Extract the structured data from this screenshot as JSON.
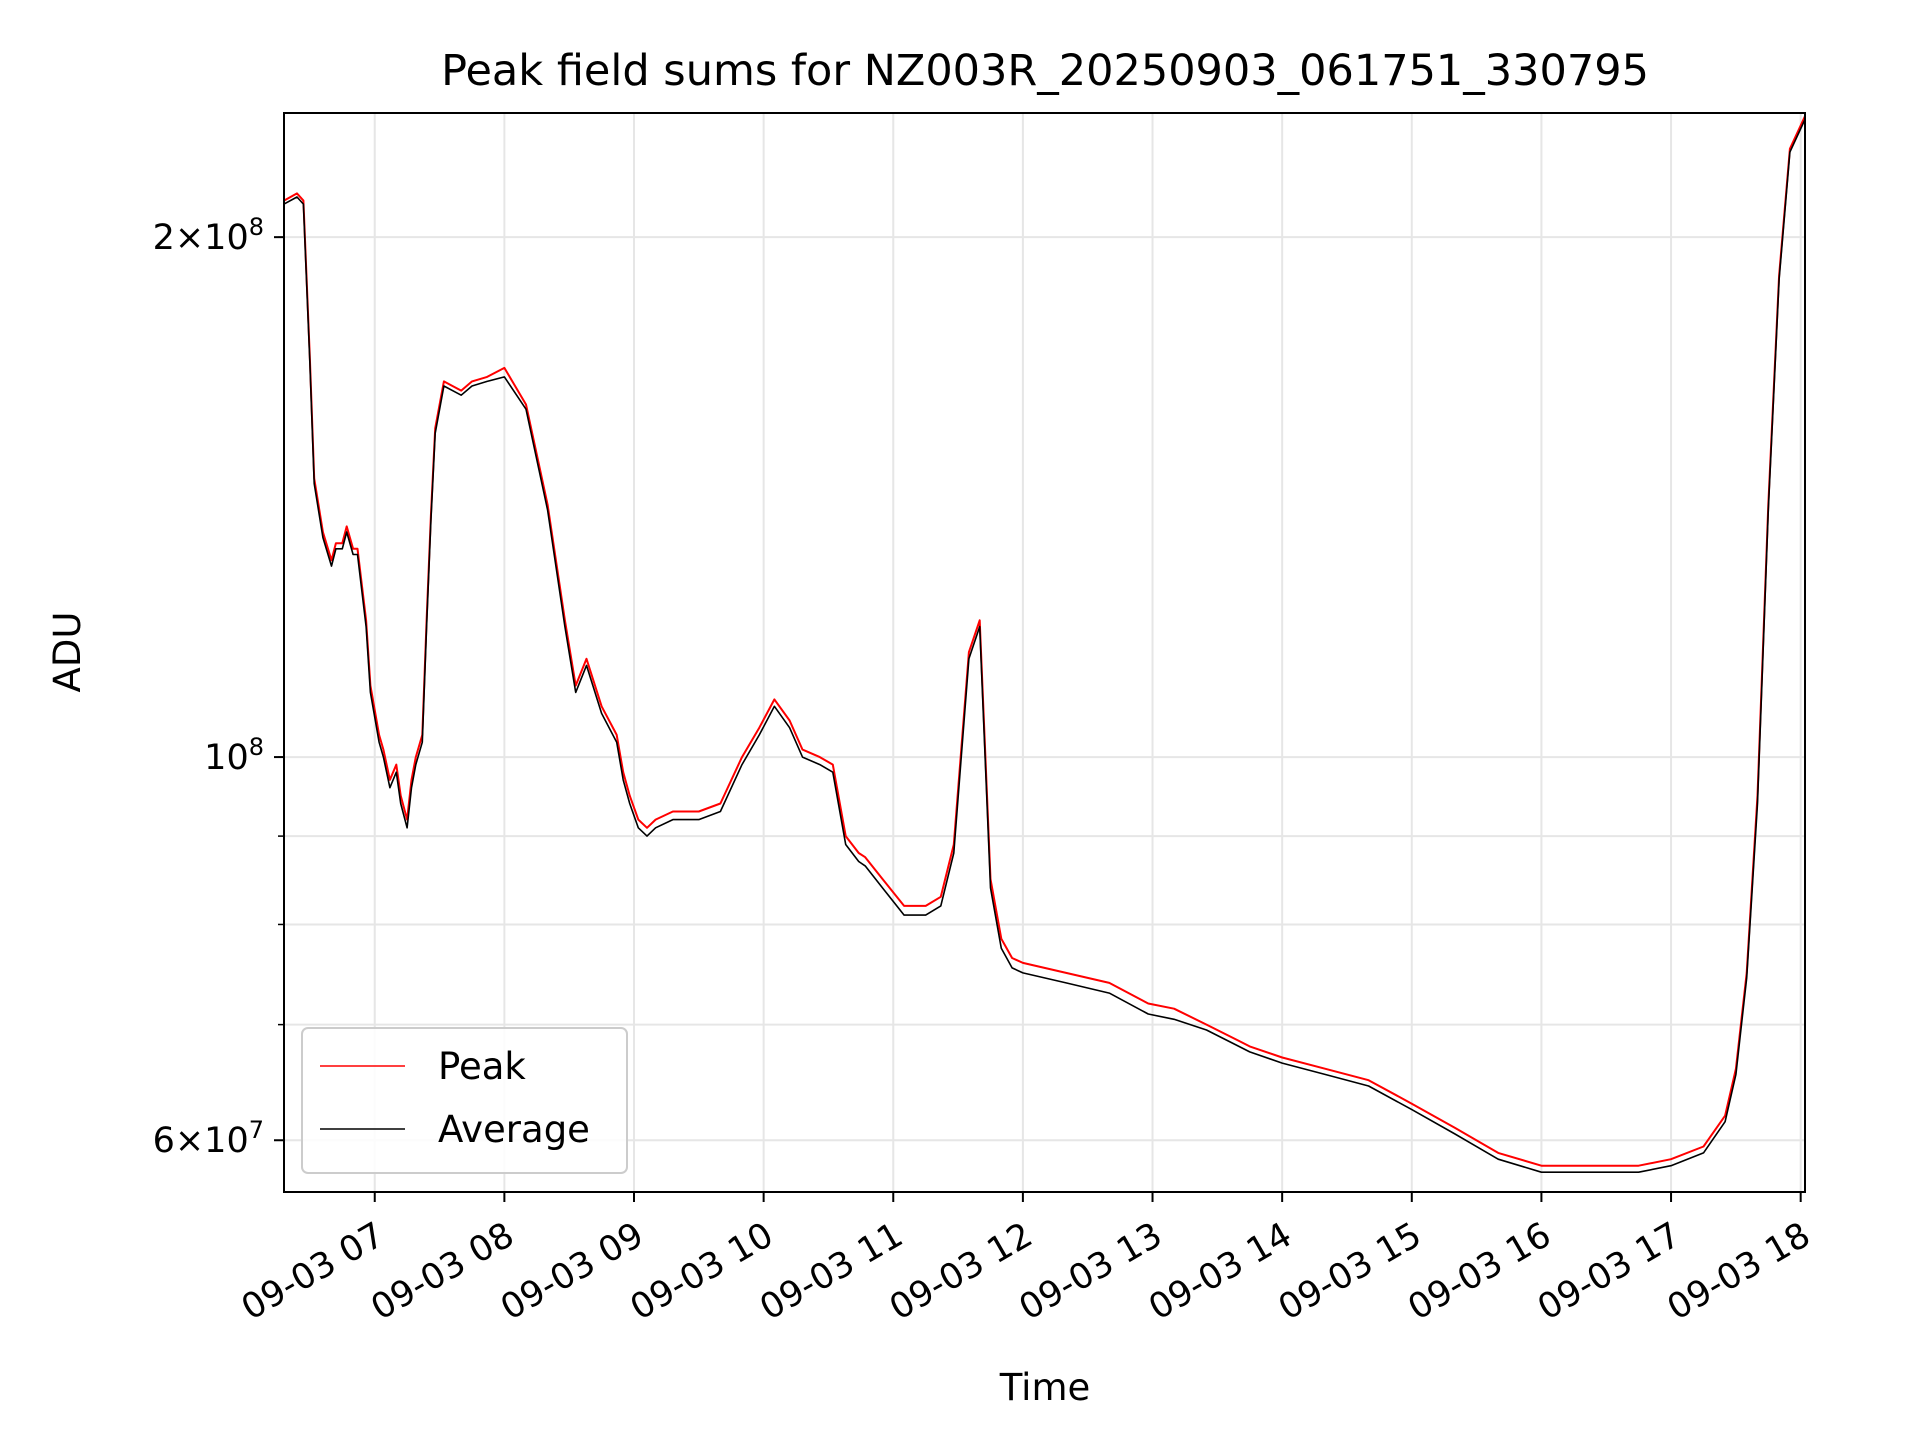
{
  "chart_data": {
    "type": "line",
    "title": "Peak field sums for NZ003R_20250903_061751_330795",
    "xlabel": "Time",
    "ylabel": "ADU",
    "y_scale": "log",
    "ylim": [
      56000000,
      236000000
    ],
    "xlim": [
      "2025-09-03 06:18",
      "2025-09-03 18:02"
    ],
    "x_tick_labels": [
      "09-03 07",
      "09-03 08",
      "09-03 09",
      "09-03 10",
      "09-03 11",
      "09-03 12",
      "09-03 13",
      "09-03 14",
      "09-03 15",
      "09-03 16",
      "09-03 17",
      "09-03 18"
    ],
    "y_tick_labels": [
      {
        "value": 200000000,
        "mantissa": "2",
        "exponent": "8"
      },
      {
        "value": 100000000,
        "mantissa": "",
        "exponent": "8"
      },
      {
        "value": 60000000,
        "mantissa": "6",
        "exponent": "7"
      }
    ],
    "grid": true,
    "legend_position": "lower-left",
    "series": [
      {
        "name": "Peak",
        "color": "#ff0000",
        "x": [
          "2025-09-03 06:18",
          "2025-09-03 06:24",
          "2025-09-03 06:27",
          "2025-09-03 06:30",
          "2025-09-03 06:32",
          "2025-09-03 06:36",
          "2025-09-03 06:40",
          "2025-09-03 06:42",
          "2025-09-03 06:45",
          "2025-09-03 06:47",
          "2025-09-03 06:50",
          "2025-09-03 06:52",
          "2025-09-03 06:56",
          "2025-09-03 06:58",
          "2025-09-03 07:02",
          "2025-09-03 07:04",
          "2025-09-03 07:07",
          "2025-09-03 07:10",
          "2025-09-03 07:12",
          "2025-09-03 07:15",
          "2025-09-03 07:17",
          "2025-09-03 07:19",
          "2025-09-03 07:22",
          "2025-09-03 07:24",
          "2025-09-03 07:26",
          "2025-09-03 07:28",
          "2025-09-03 07:32",
          "2025-09-03 07:36",
          "2025-09-03 07:40",
          "2025-09-03 07:45",
          "2025-09-03 07:52",
          "2025-09-03 08:00",
          "2025-09-03 08:10",
          "2025-09-03 08:20",
          "2025-09-03 08:28",
          "2025-09-03 08:33",
          "2025-09-03 08:38",
          "2025-09-03 08:45",
          "2025-09-03 08:52",
          "2025-09-03 08:55",
          "2025-09-03 08:58",
          "2025-09-03 09:02",
          "2025-09-03 09:06",
          "2025-09-03 09:10",
          "2025-09-03 09:18",
          "2025-09-03 09:30",
          "2025-09-03 09:40",
          "2025-09-03 09:50",
          "2025-09-03 09:58",
          "2025-09-03 10:05",
          "2025-09-03 10:12",
          "2025-09-03 10:18",
          "2025-09-03 10:26",
          "2025-09-03 10:32",
          "2025-09-03 10:38",
          "2025-09-03 10:44",
          "2025-09-03 10:47",
          "2025-09-03 10:55",
          "2025-09-03 11:05",
          "2025-09-03 11:15",
          "2025-09-03 11:22",
          "2025-09-03 11:28",
          "2025-09-03 11:35",
          "2025-09-03 11:40",
          "2025-09-03 11:45",
          "2025-09-03 11:50",
          "2025-09-03 11:55",
          "2025-09-03 12:00",
          "2025-09-03 12:20",
          "2025-09-03 12:40",
          "2025-09-03 12:58",
          "2025-09-03 13:10",
          "2025-09-03 13:25",
          "2025-09-03 13:40",
          "2025-09-03 13:45",
          "2025-09-03 14:00",
          "2025-09-03 14:20",
          "2025-09-03 14:40",
          "2025-09-03 15:00",
          "2025-09-03 15:20",
          "2025-09-03 15:40",
          "2025-09-03 16:00",
          "2025-09-03 16:20",
          "2025-09-03 16:30",
          "2025-09-03 16:45",
          "2025-09-03 17:00",
          "2025-09-03 17:15",
          "2025-09-03 17:25",
          "2025-09-03 17:30",
          "2025-09-03 17:35",
          "2025-09-03 17:40",
          "2025-09-03 17:45",
          "2025-09-03 17:50",
          "2025-09-03 17:55",
          "2025-09-03 18:02"
        ],
        "values": [
          210000000,
          212000000,
          210000000,
          170000000,
          145000000,
          135000000,
          130000000,
          133000000,
          133000000,
          136000000,
          132000000,
          132000000,
          120000000,
          110000000,
          103000000,
          101000000,
          97000000,
          99000000,
          95000000,
          92000000,
          97000000,
          100000000,
          103000000,
          120000000,
          138000000,
          155000000,
          165000000,
          164000000,
          163000000,
          165000000,
          166000000,
          168000000,
          160000000,
          140000000,
          120000000,
          110000000,
          114000000,
          107000000,
          103000000,
          98000000,
          95000000,
          92000000,
          91000000,
          92000000,
          93000000,
          93000000,
          94000000,
          100000000,
          104000000,
          108000000,
          105000000,
          101000000,
          100000000,
          99000000,
          90000000,
          88000000,
          87500000,
          85000000,
          82000000,
          82000000,
          83000000,
          89000000,
          115000000,
          120000000,
          85000000,
          78500000,
          76500000,
          76000000,
          75000000,
          74000000,
          72000000,
          71500000,
          70000000,
          68500000,
          68000000,
          67000000,
          66000000,
          65000000,
          63000000,
          61000000,
          59000000,
          58000000,
          58000000,
          58000000,
          58000000,
          58500000,
          59500000,
          62000000,
          66000000,
          75000000,
          95000000,
          140000000,
          190000000,
          225000000,
          235000000
        ]
      },
      {
        "name": "Average",
        "color": "#000000",
        "x": [
          "2025-09-03 06:18",
          "2025-09-03 06:24",
          "2025-09-03 06:27",
          "2025-09-03 06:30",
          "2025-09-03 06:32",
          "2025-09-03 06:36",
          "2025-09-03 06:40",
          "2025-09-03 06:42",
          "2025-09-03 06:45",
          "2025-09-03 06:47",
          "2025-09-03 06:50",
          "2025-09-03 06:52",
          "2025-09-03 06:56",
          "2025-09-03 06:58",
          "2025-09-03 07:02",
          "2025-09-03 07:04",
          "2025-09-03 07:07",
          "2025-09-03 07:10",
          "2025-09-03 07:12",
          "2025-09-03 07:15",
          "2025-09-03 07:17",
          "2025-09-03 07:19",
          "2025-09-03 07:22",
          "2025-09-03 07:24",
          "2025-09-03 07:26",
          "2025-09-03 07:28",
          "2025-09-03 07:32",
          "2025-09-03 07:36",
          "2025-09-03 07:40",
          "2025-09-03 07:45",
          "2025-09-03 07:52",
          "2025-09-03 08:00",
          "2025-09-03 08:10",
          "2025-09-03 08:20",
          "2025-09-03 08:28",
          "2025-09-03 08:33",
          "2025-09-03 08:38",
          "2025-09-03 08:45",
          "2025-09-03 08:52",
          "2025-09-03 08:55",
          "2025-09-03 08:58",
          "2025-09-03 09:02",
          "2025-09-03 09:06",
          "2025-09-03 09:10",
          "2025-09-03 09:18",
          "2025-09-03 09:30",
          "2025-09-03 09:40",
          "2025-09-03 09:50",
          "2025-09-03 09:58",
          "2025-09-03 10:05",
          "2025-09-03 10:12",
          "2025-09-03 10:18",
          "2025-09-03 10:26",
          "2025-09-03 10:32",
          "2025-09-03 10:38",
          "2025-09-03 10:44",
          "2025-09-03 10:47",
          "2025-09-03 10:55",
          "2025-09-03 11:05",
          "2025-09-03 11:15",
          "2025-09-03 11:22",
          "2025-09-03 11:28",
          "2025-09-03 11:35",
          "2025-09-03 11:40",
          "2025-09-03 11:45",
          "2025-09-03 11:50",
          "2025-09-03 11:55",
          "2025-09-03 12:00",
          "2025-09-03 12:20",
          "2025-09-03 12:40",
          "2025-09-03 12:58",
          "2025-09-03 13:10",
          "2025-09-03 13:25",
          "2025-09-03 13:40",
          "2025-09-03 13:45",
          "2025-09-03 14:00",
          "2025-09-03 14:20",
          "2025-09-03 14:40",
          "2025-09-03 15:00",
          "2025-09-03 15:20",
          "2025-09-03 15:40",
          "2025-09-03 16:00",
          "2025-09-03 16:20",
          "2025-09-03 16:30",
          "2025-09-03 16:45",
          "2025-09-03 17:00",
          "2025-09-03 17:15",
          "2025-09-03 17:25",
          "2025-09-03 17:30",
          "2025-09-03 17:35",
          "2025-09-03 17:40",
          "2025-09-03 17:45",
          "2025-09-03 17:50",
          "2025-09-03 17:55",
          "2025-09-03 18:02"
        ],
        "values": [
          209000000,
          211000000,
          209000000,
          169000000,
          144000000,
          134000000,
          129000000,
          132000000,
          132000000,
          135000000,
          131000000,
          131000000,
          119000000,
          109000000,
          102000000,
          100000000,
          96000000,
          98000000,
          94000000,
          91000000,
          96000000,
          99000000,
          102000000,
          119000000,
          137000000,
          154000000,
          164000000,
          163000000,
          162000000,
          164000000,
          165000000,
          166000000,
          159000000,
          139000000,
          119000000,
          109000000,
          113000000,
          106000000,
          102000000,
          97000000,
          94000000,
          91000000,
          90000000,
          91000000,
          92000000,
          92000000,
          93000000,
          99000000,
          103000000,
          107000000,
          104000000,
          100000000,
          99000000,
          98000000,
          89000000,
          87000000,
          86500000,
          84000000,
          81000000,
          81000000,
          82000000,
          88000000,
          114000000,
          119000000,
          84000000,
          77500000,
          75500000,
          75000000,
          74000000,
          73000000,
          71000000,
          70500000,
          69500000,
          68000000,
          67500000,
          66500000,
          65500000,
          64500000,
          62500000,
          60500000,
          58500000,
          57500000,
          57500000,
          57500000,
          57500000,
          58000000,
          59000000,
          61500000,
          65500000,
          74500000,
          94000000,
          139000000,
          189000000,
          224000000,
          234000000
        ]
      }
    ]
  }
}
